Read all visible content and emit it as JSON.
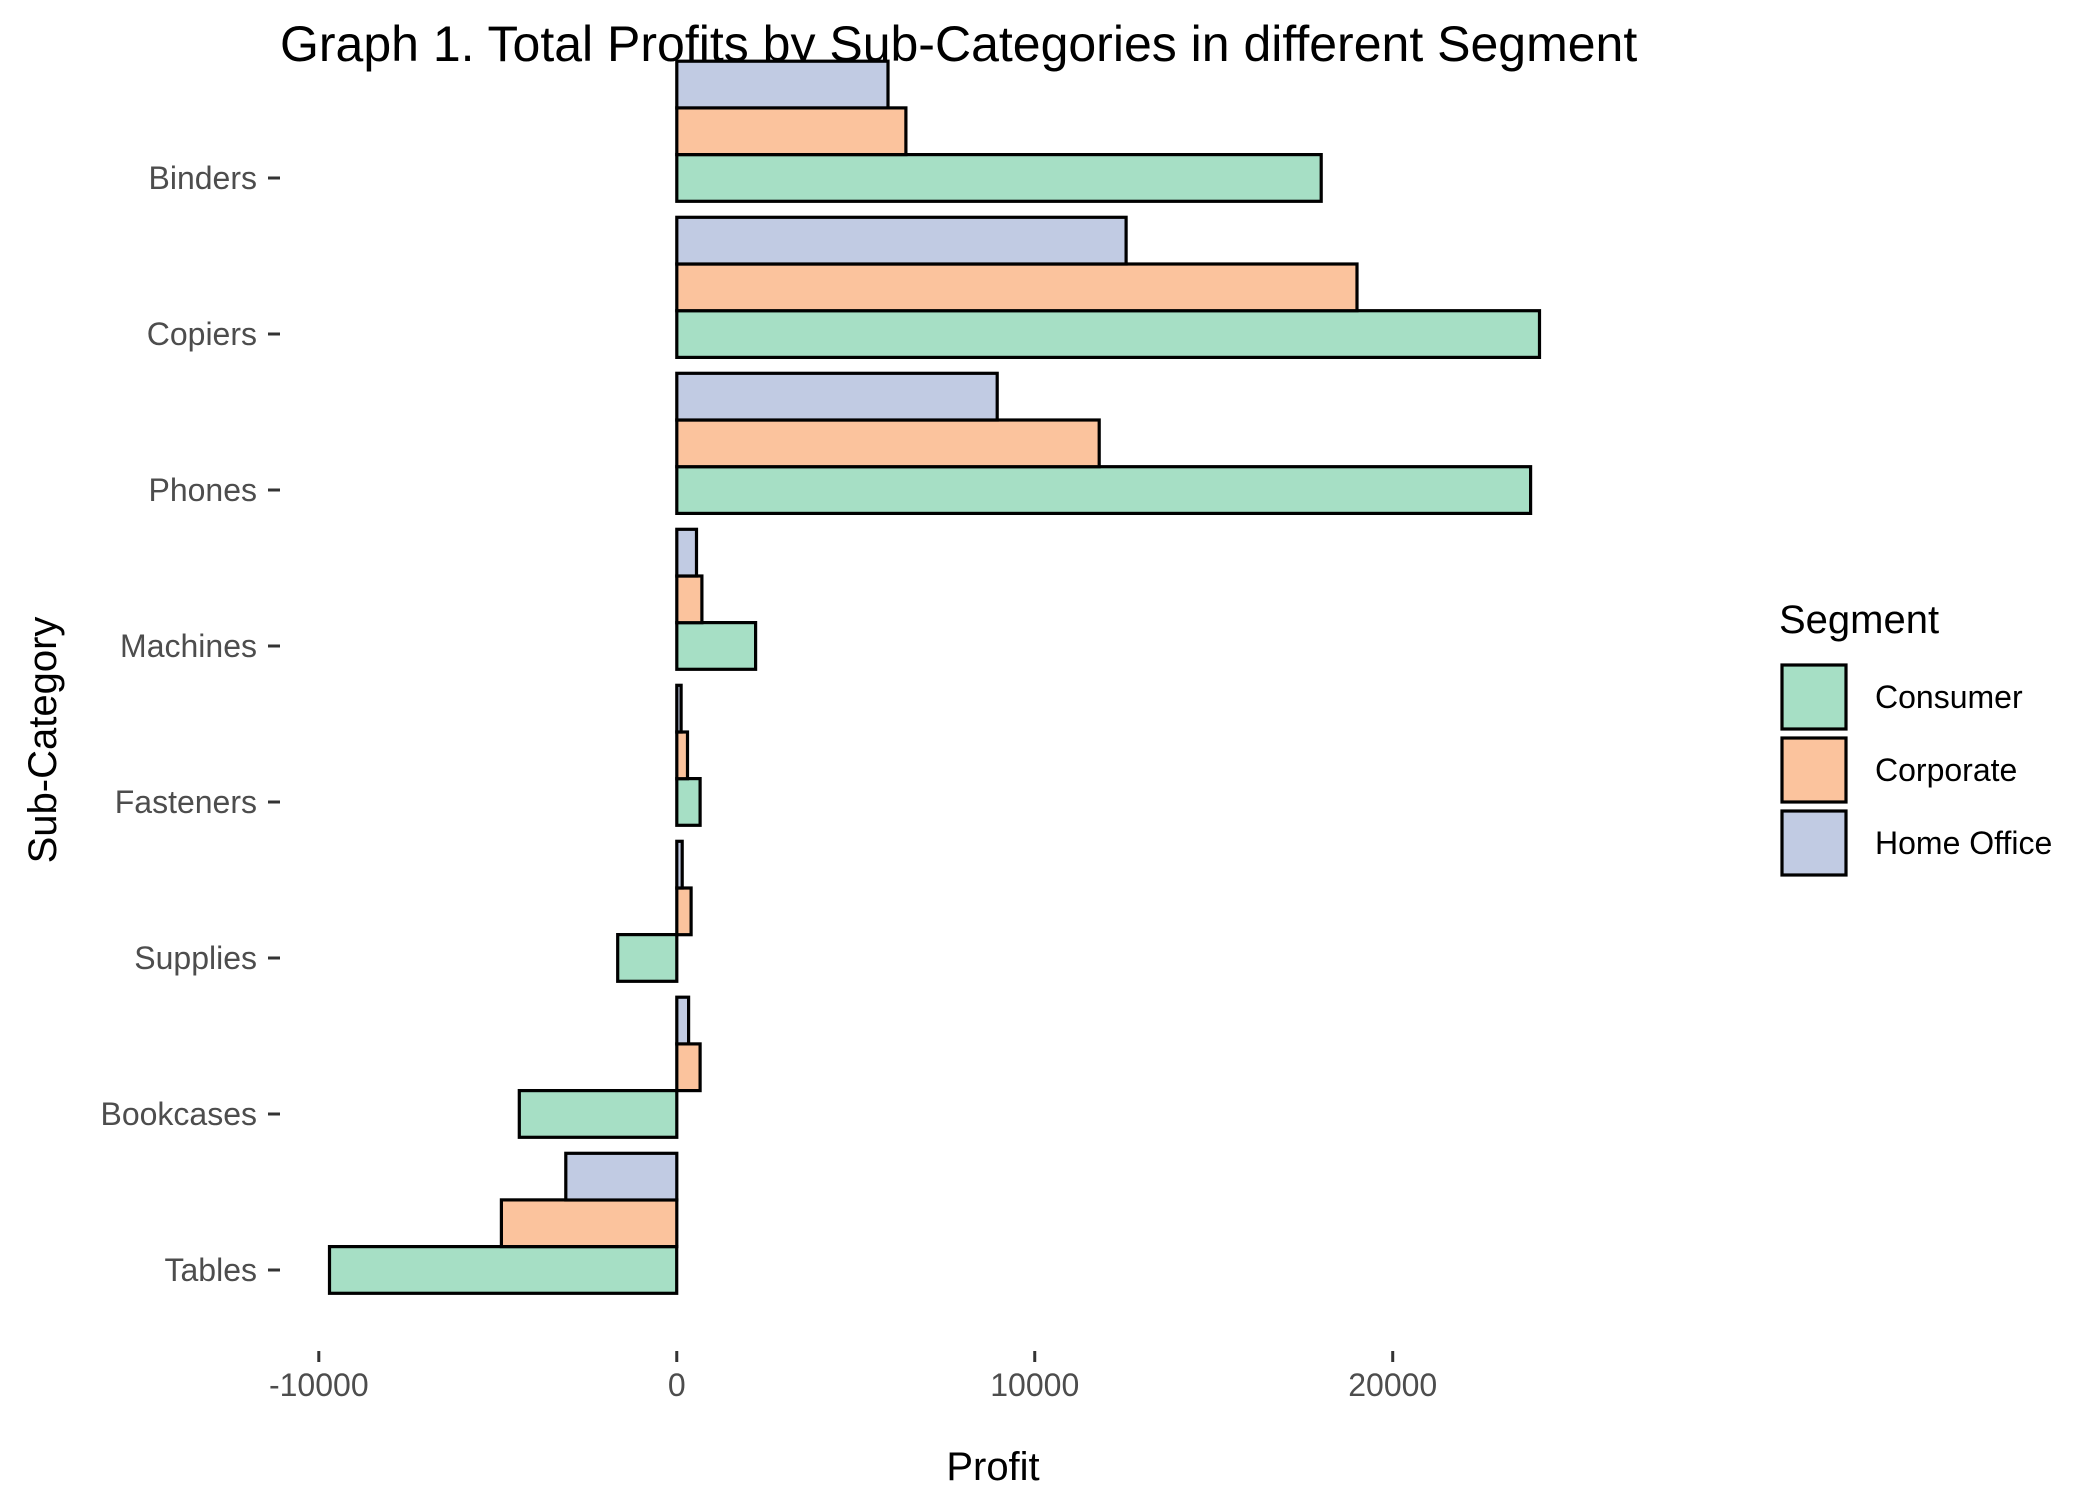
{
  "chart_data": {
    "type": "bar",
    "orientation": "horizontal",
    "title": "Graph 1. Total Profits by Sub-Categories in different Segment",
    "xlabel": "Profit",
    "ylabel": "Sub-Category",
    "categories": [
      "Binders",
      "Copiers",
      "Phones",
      "Machines",
      "Fasteners",
      "Supplies",
      "Bookcases",
      "Tables"
    ],
    "xlim": [
      -11000,
      28500
    ],
    "xticks": [
      -10000,
      0,
      10000,
      20000
    ],
    "xtick_labels": [
      "-10000",
      "0",
      "10000",
      "20000"
    ],
    "grid": false,
    "legend": {
      "title": "Segment",
      "position": "right"
    },
    "series": [
      {
        "name": "Consumer",
        "color": "#a6dfc5",
        "values": [
          18000,
          24100,
          23850,
          2200,
          650,
          -1650,
          -4400,
          -9700
        ]
      },
      {
        "name": "Corporate",
        "color": "#fbc39d",
        "values": [
          6400,
          19000,
          11800,
          700,
          300,
          400,
          650,
          -4900
        ]
      },
      {
        "name": "Home Office",
        "color": "#c1cbe3",
        "values": [
          5900,
          12550,
          8950,
          550,
          120,
          150,
          330,
          -3100
        ]
      }
    ],
    "bar_outline": "#000000"
  }
}
